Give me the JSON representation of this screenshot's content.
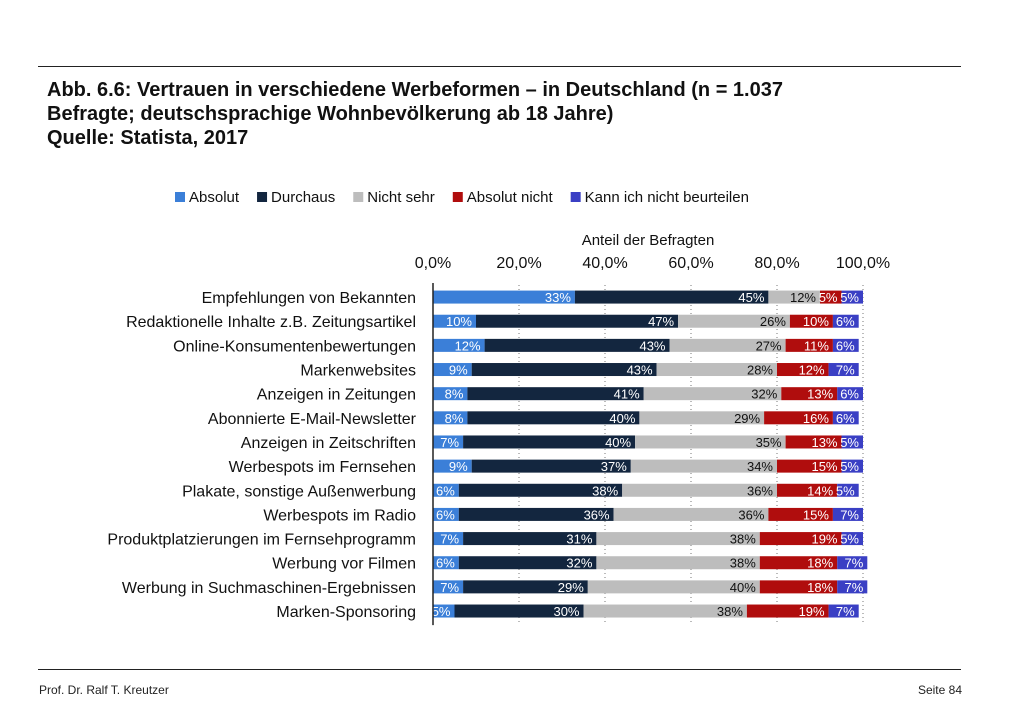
{
  "title": {
    "line1": "Abb. 6.6: Vertrauen in verschiedene Werbeformen – in Deutschland (n = 1.037",
    "line2": "Befragte; deutschsprachige Wohnbevölkerung ab 18 Jahre)",
    "line3": "Quelle: Statista, 2017"
  },
  "footer": {
    "author": "Prof. Dr. Ralf T. Kreutzer",
    "page": "Seite 84"
  },
  "chart_data": {
    "type": "bar",
    "orientation": "horizontal",
    "stacked": true,
    "xlabel": "Anteil der Befragten",
    "xlim": [
      0,
      100
    ],
    "ticks": [
      "0,0%",
      "20,0%",
      "40,0%",
      "60,0%",
      "80,0%",
      "100,0%"
    ],
    "tick_values": [
      0,
      20,
      40,
      60,
      80,
      100
    ],
    "legend_position": "top",
    "categories": [
      "Empfehlungen von Bekannten",
      "Redaktionelle Inhalte z.B. Zeitungsartikel",
      "Online-Konsumentenbewertungen",
      "Markenwebsites",
      "Anzeigen in Zeitungen",
      "Abonnierte E-Mail-Newsletter",
      "Anzeigen in Zeitschriften",
      "Werbespots im Fernsehen",
      "Plakate, sonstige Außenwerbung",
      "Werbespots im Radio",
      "Produktplatzierungen im Fernsehprogramm",
      "Werbung vor Filmen",
      "Werbung in Suchmaschinen-Ergebnissen",
      "Marken-Sponsoring"
    ],
    "series": [
      {
        "name": "Absolut",
        "color": "#3b7fd8",
        "label_color": "#ffffff",
        "values": [
          33,
          10,
          12,
          9,
          8,
          8,
          7,
          9,
          6,
          6,
          7,
          6,
          7,
          5
        ]
      },
      {
        "name": "Durchaus",
        "color": "#13263f",
        "label_color": "#ffffff",
        "values": [
          45,
          47,
          43,
          43,
          41,
          40,
          40,
          37,
          38,
          36,
          31,
          32,
          29,
          30
        ]
      },
      {
        "name": "Nicht sehr",
        "color": "#bdbdbd",
        "label_color": "#111111",
        "values": [
          12,
          26,
          27,
          28,
          32,
          29,
          35,
          34,
          36,
          36,
          38,
          38,
          40,
          38
        ]
      },
      {
        "name": "Absolut nicht",
        "color": "#b00d0d",
        "label_color": "#ffffff",
        "values": [
          5,
          10,
          11,
          12,
          13,
          16,
          13,
          15,
          14,
          15,
          19,
          18,
          18,
          19
        ]
      },
      {
        "name": "Kann ich nicht beurteilen",
        "color": "#3a3fc4",
        "label_color": "#ffffff",
        "values": [
          5,
          6,
          6,
          7,
          6,
          6,
          5,
          5,
          5,
          7,
          5,
          7,
          7,
          7
        ]
      }
    ]
  }
}
